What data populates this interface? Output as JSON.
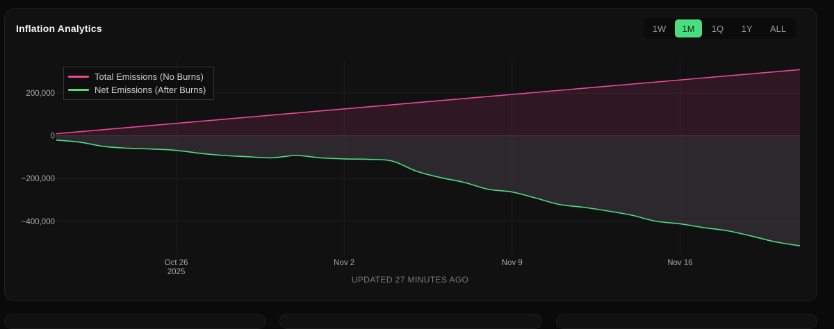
{
  "header": {
    "title": "Inflation Analytics"
  },
  "range_buttons": [
    {
      "label": "1W",
      "active": false
    },
    {
      "label": "1M",
      "active": true
    },
    {
      "label": "1Q",
      "active": false
    },
    {
      "label": "1Y",
      "active": false
    },
    {
      "label": "ALL",
      "active": false
    }
  ],
  "footer": {
    "updated": "UPDATED 27 MINUTES AGO"
  },
  "colors": {
    "total": "#ec4899",
    "net": "#4ade80",
    "accent": "#4ade80"
  },
  "chart_data": {
    "type": "area",
    "title": "Inflation Analytics",
    "xlabel": "",
    "ylabel": "",
    "x_range": [
      "2025-10-21",
      "2025-11-21"
    ],
    "ylim": [
      -560000,
      350000
    ],
    "grid": true,
    "legend_position": "top-left",
    "x_ticks": [
      {
        "date": "2025-10-26",
        "label": "Oct 26",
        "sublabel": "2025"
      },
      {
        "date": "2025-11-02",
        "label": "Nov 2",
        "sublabel": ""
      },
      {
        "date": "2025-11-09",
        "label": "Nov 9",
        "sublabel": ""
      },
      {
        "date": "2025-11-16",
        "label": "Nov 16",
        "sublabel": ""
      }
    ],
    "y_ticks": [
      {
        "value": 200000,
        "label": "200,000"
      },
      {
        "value": 0,
        "label": "0"
      },
      {
        "value": -200000,
        "label": "−200,000"
      },
      {
        "value": -400000,
        "label": "−400,000"
      }
    ],
    "series": [
      {
        "name": "Total Emissions (No Burns)",
        "color": "#ec4899",
        "points": [
          [
            "2025-10-21",
            10000
          ],
          [
            "2025-11-21",
            310000
          ]
        ]
      },
      {
        "name": "Net Emissions (After Burns)",
        "color": "#4ade80",
        "points": [
          [
            "2025-10-21",
            -20000
          ],
          [
            "2025-10-22",
            -30000
          ],
          [
            "2025-10-23",
            -50000
          ],
          [
            "2025-10-24",
            -58000
          ],
          [
            "2025-10-25",
            -62000
          ],
          [
            "2025-10-26",
            -68000
          ],
          [
            "2025-10-27",
            -82000
          ],
          [
            "2025-10-28",
            -92000
          ],
          [
            "2025-10-29",
            -98000
          ],
          [
            "2025-10-30",
            -103000
          ],
          [
            "2025-10-31",
            -92000
          ],
          [
            "2025-11-01",
            -103000
          ],
          [
            "2025-11-02",
            -108000
          ],
          [
            "2025-11-03",
            -110000
          ],
          [
            "2025-11-04",
            -118000
          ],
          [
            "2025-11-05",
            -165000
          ],
          [
            "2025-11-06",
            -195000
          ],
          [
            "2025-11-07",
            -218000
          ],
          [
            "2025-11-08",
            -250000
          ],
          [
            "2025-11-09",
            -263000
          ],
          [
            "2025-11-10",
            -292000
          ],
          [
            "2025-11-11",
            -322000
          ],
          [
            "2025-11-12",
            -335000
          ],
          [
            "2025-11-13",
            -352000
          ],
          [
            "2025-11-14",
            -372000
          ],
          [
            "2025-11-15",
            -400000
          ],
          [
            "2025-11-16",
            -412000
          ],
          [
            "2025-11-17",
            -430000
          ],
          [
            "2025-11-18",
            -445000
          ],
          [
            "2025-11-19",
            -470000
          ],
          [
            "2025-11-20",
            -497000
          ],
          [
            "2025-11-21",
            -515000
          ]
        ]
      }
    ]
  }
}
